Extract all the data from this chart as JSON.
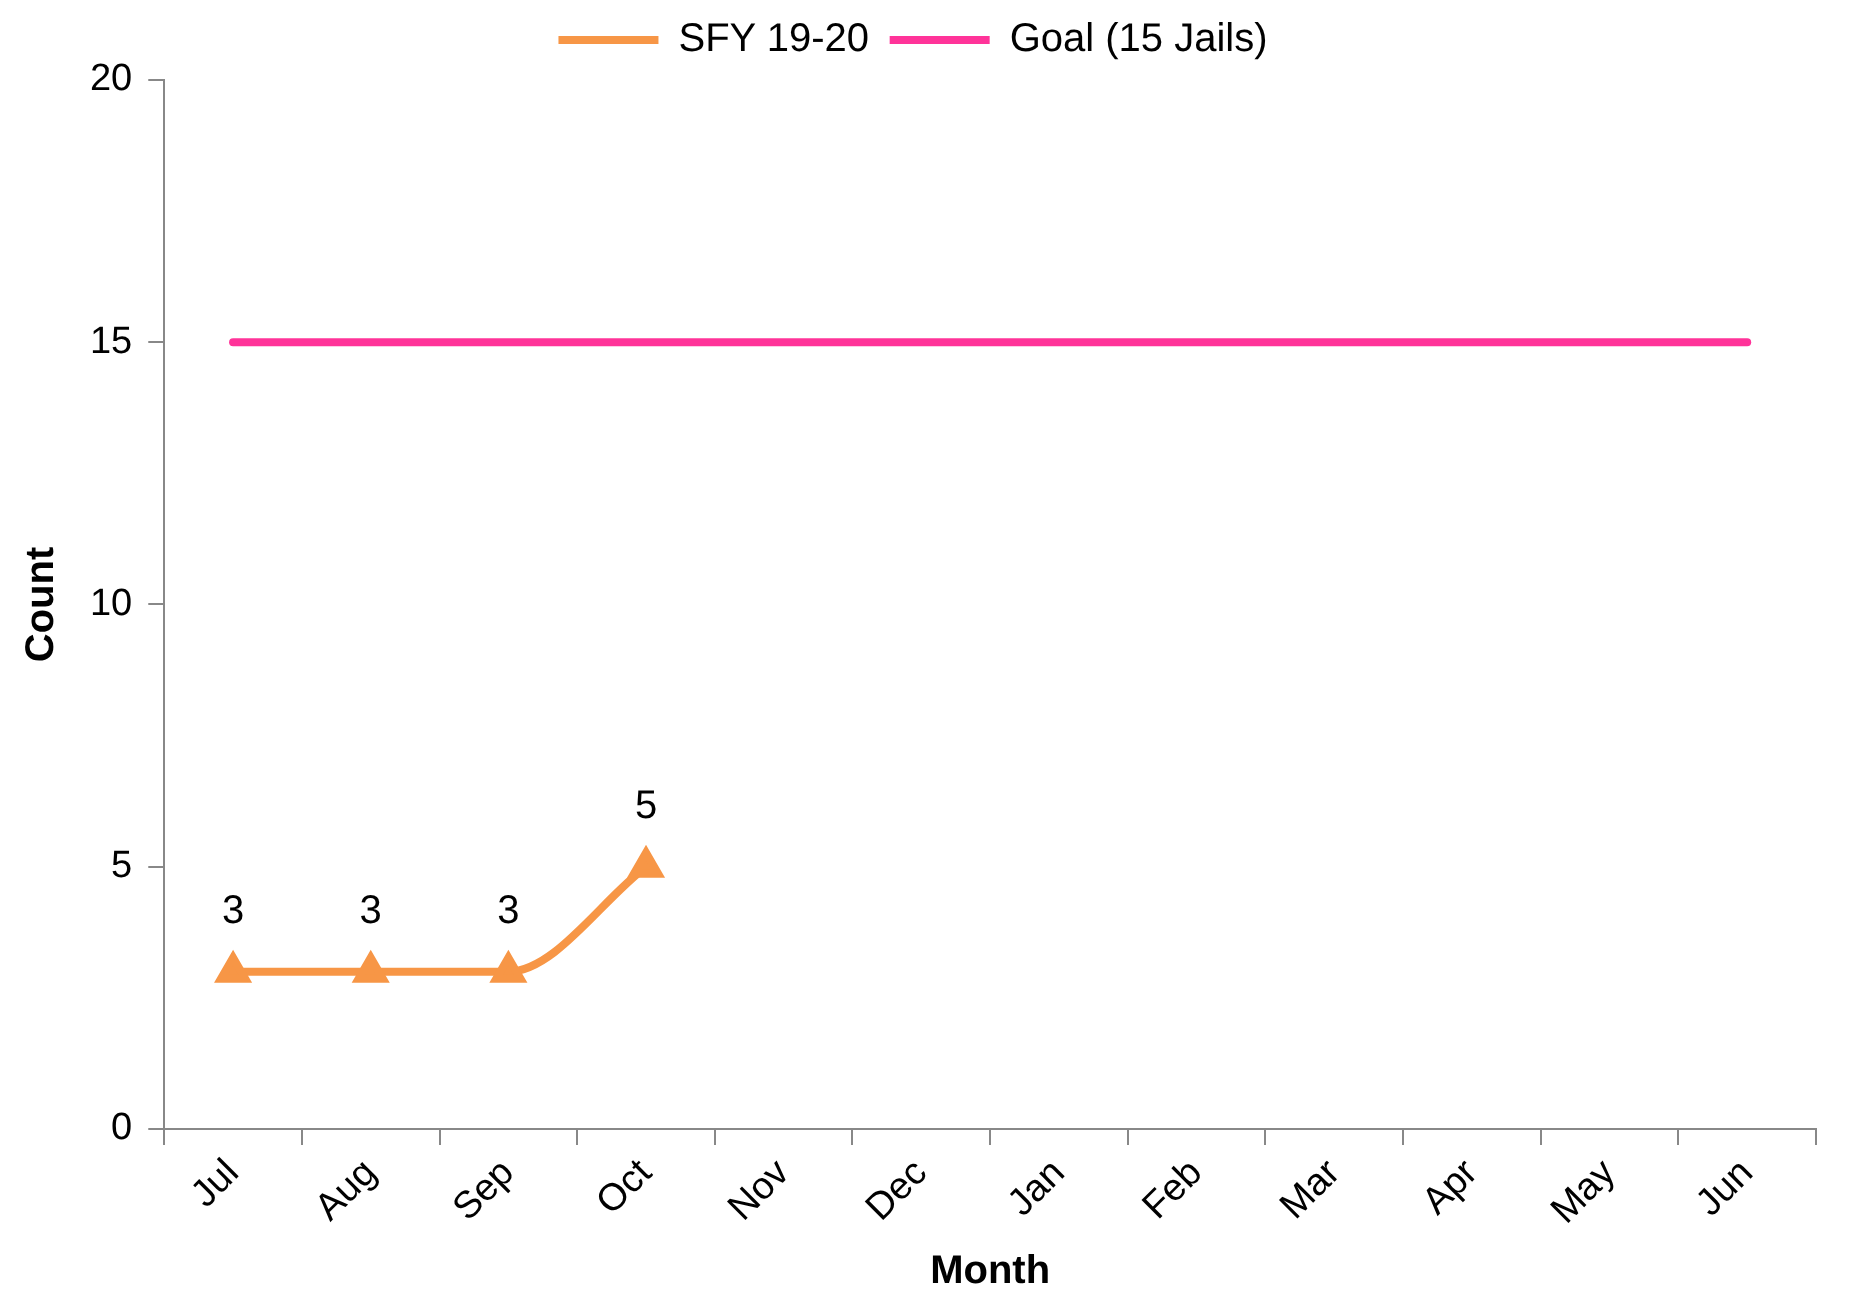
{
  "chart_data": {
    "type": "line",
    "xlabel": "Month",
    "ylabel": "Count",
    "categories": [
      "Jul",
      "Aug",
      "Sep",
      "Oct",
      "Nov",
      "Dec",
      "Jan",
      "Feb",
      "Mar",
      "Apr",
      "May",
      "Jun"
    ],
    "series": [
      {
        "name": "SFY 19-20",
        "color": "#f79646",
        "marker": "triangle",
        "values": [
          3,
          3,
          3,
          5,
          null,
          null,
          null,
          null,
          null,
          null,
          null,
          null
        ],
        "value_labels": [
          "3",
          "3",
          "3",
          "5",
          null,
          null,
          null,
          null,
          null,
          null,
          null,
          null
        ]
      },
      {
        "name": "Goal (15 Jails)",
        "color": "#ff3399",
        "marker": "none",
        "values": [
          15,
          15,
          15,
          15,
          15,
          15,
          15,
          15,
          15,
          15,
          15,
          15
        ]
      }
    ],
    "ylim": [
      0,
      20
    ],
    "yticks": [
      0,
      5,
      10,
      15,
      20
    ],
    "grid": false,
    "legend": "top"
  }
}
